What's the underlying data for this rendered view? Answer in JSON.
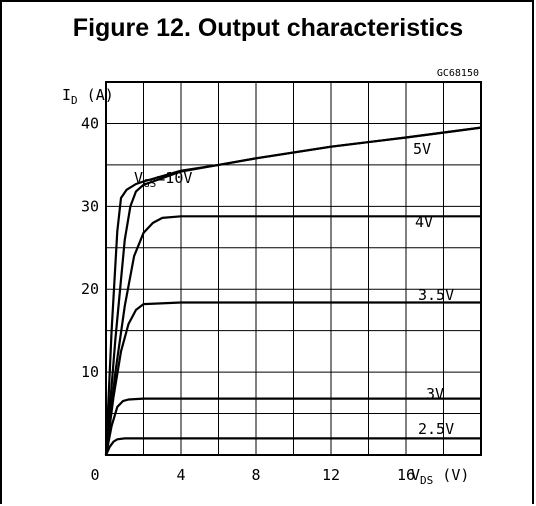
{
  "figure": {
    "title": "Figure 12. Output characteristics",
    "code": "GC68150"
  },
  "chart_data": {
    "type": "line",
    "ylabel_main": "I",
    "ylabel_sub": "D",
    "ylabel_unit": "(A)",
    "xlabel_main": "V",
    "xlabel_sub": "DS",
    "xlabel_unit": "(V)",
    "xlim": [
      0,
      20
    ],
    "ylim": [
      0,
      45
    ],
    "grid": true,
    "x_ticks": [
      {
        "value": 0,
        "label": "0"
      },
      {
        "value": 4,
        "label": "4"
      },
      {
        "value": 8,
        "label": "8"
      },
      {
        "value": 12,
        "label": "12"
      },
      {
        "value": 16,
        "label": "16"
      }
    ],
    "y_ticks": [
      {
        "value": 10,
        "label": "10"
      },
      {
        "value": 20,
        "label": "20"
      },
      {
        "value": 30,
        "label": "30"
      },
      {
        "value": 40,
        "label": "40"
      }
    ],
    "series_color": "#000000",
    "series": [
      {
        "name": "10V",
        "label_main": "V",
        "label_sub": "GS",
        "label_rest": "=10V",
        "x": [
          0,
          0.3,
          0.6,
          0.8,
          1.1,
          1.6,
          2,
          4,
          6,
          8,
          12,
          16,
          20
        ],
        "y": [
          0,
          15,
          27,
          31,
          32,
          32.7,
          33,
          34.3,
          35,
          35.8,
          37.2,
          38.3,
          39.5
        ]
      },
      {
        "name": "5V",
        "label_main": "5V",
        "label_sub": "",
        "label_rest": "",
        "x": [
          0,
          0.5,
          1,
          1.3,
          1.6,
          2,
          4,
          6,
          8,
          12,
          16,
          20
        ],
        "y": [
          0,
          14,
          26,
          30,
          31.8,
          32.6,
          34.2,
          35,
          35.8,
          37.2,
          38.3,
          39.5
        ]
      },
      {
        "name": "4V",
        "label_main": "4V",
        "label_sub": "",
        "label_rest": "",
        "x": [
          0,
          0.5,
          1,
          1.5,
          2,
          2.5,
          3,
          4,
          8,
          12,
          16,
          20
        ],
        "y": [
          0,
          10,
          18,
          24,
          26.8,
          28,
          28.6,
          28.8,
          28.8,
          28.8,
          28.8,
          28.8
        ]
      },
      {
        "name": "3.5V",
        "label_main": "3.5V",
        "label_sub": "",
        "label_rest": "",
        "x": [
          0,
          0.4,
          0.8,
          1.2,
          1.6,
          2,
          4,
          8,
          12,
          16,
          20
        ],
        "y": [
          0,
          7,
          12.5,
          15.8,
          17.5,
          18.2,
          18.4,
          18.4,
          18.4,
          18.4,
          18.4
        ]
      },
      {
        "name": "3V",
        "label_main": "3V",
        "label_sub": "",
        "label_rest": "",
        "x": [
          0,
          0.3,
          0.6,
          0.9,
          1.2,
          2,
          4,
          8,
          12,
          16,
          20
        ],
        "y": [
          0,
          3.5,
          5.8,
          6.5,
          6.7,
          6.8,
          6.8,
          6.8,
          6.8,
          6.8,
          6.8
        ]
      },
      {
        "name": "2.5V",
        "label_main": "2.5V",
        "label_sub": "",
        "label_rest": "",
        "x": [
          0,
          0.2,
          0.4,
          0.6,
          1,
          2,
          4,
          8,
          12,
          16,
          20
        ],
        "y": [
          0,
          1,
          1.6,
          1.9,
          2,
          2,
          2,
          2,
          2,
          2,
          2
        ]
      }
    ]
  }
}
